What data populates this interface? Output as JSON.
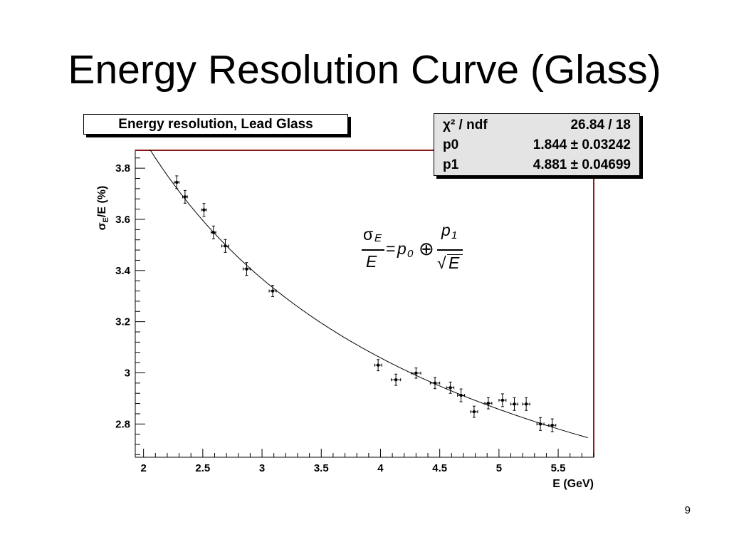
{
  "slide": {
    "title": "Energy Resolution Curve (Glass)",
    "page_number": "9"
  },
  "stats": {
    "row1_label": "χ² / ndf",
    "row1_value": "26.84 / 18",
    "row2_label": "p0",
    "row2_value": "1.844 ± 0.03242",
    "row3_label": "p1",
    "row3_value": "4.881 ± 0.04699"
  },
  "formula": {
    "sigma": "σ",
    "sub_e": "E",
    "den_e": "E",
    "equals": "=",
    "p": "p",
    "sub_0": "0",
    "oplus": "⊕",
    "p1_p": "p",
    "p1_sub": "1",
    "sqrt": "√",
    "sqrt_e": "E"
  },
  "chart_data": {
    "type": "scatter",
    "title": "Energy resolution, Lead Glass",
    "xlabel": "E (GeV)",
    "ylabel": "σE/E (%)",
    "ylabel_sigma": "σ",
    "ylabel_sub": "E",
    "ylabel_rest": "/E (%)",
    "xlim": [
      1.93,
      5.8
    ],
    "ylim": [
      2.67,
      3.87
    ],
    "xticks": [
      2,
      2.5,
      3,
      3.5,
      4,
      4.5,
      5,
      5.5
    ],
    "xtick_labels": [
      "2",
      "2.5",
      "3",
      "3.5",
      "4",
      "4.5",
      "5",
      "5.5"
    ],
    "yticks": [
      2.8,
      3,
      3.2,
      3.4,
      3.6,
      3.8
    ],
    "ytick_labels": [
      "2.8",
      "3",
      "3.2",
      "3.4",
      "3.6",
      "3.8"
    ],
    "grid": false,
    "fit": {
      "function": "sigma_E/E = p0 (+) p1/sqrt(E)",
      "p0": 1.844,
      "p1": 4.881,
      "chi2_ndf": "26.84 / 18"
    },
    "series": [
      {
        "x": [
          2.28,
          2.35,
          2.51,
          2.59,
          2.69,
          2.87,
          3.09,
          3.98,
          4.13,
          4.3,
          4.46,
          4.59,
          4.68,
          4.79,
          4.91,
          5.03,
          5.13,
          5.23,
          5.35,
          5.45
        ],
        "y": [
          3.745,
          3.688,
          3.637,
          3.549,
          3.496,
          3.406,
          3.32,
          3.03,
          2.973,
          2.999,
          2.96,
          2.942,
          2.912,
          2.848,
          2.881,
          2.893,
          2.878,
          2.878,
          2.8,
          2.795
        ],
        "xerr": [
          0.02,
          0.02,
          0.02,
          0.02,
          0.03,
          0.03,
          0.03,
          0.03,
          0.04,
          0.04,
          0.04,
          0.03,
          0.03,
          0.03,
          0.03,
          0.03,
          0.03,
          0.03,
          0.03,
          0.03
        ],
        "yerr": [
          0.025,
          0.025,
          0.025,
          0.025,
          0.025,
          0.025,
          0.022,
          0.022,
          0.022,
          0.02,
          0.022,
          0.022,
          0.025,
          0.022,
          0.022,
          0.025,
          0.025,
          0.025,
          0.025,
          0.025
        ]
      }
    ]
  }
}
